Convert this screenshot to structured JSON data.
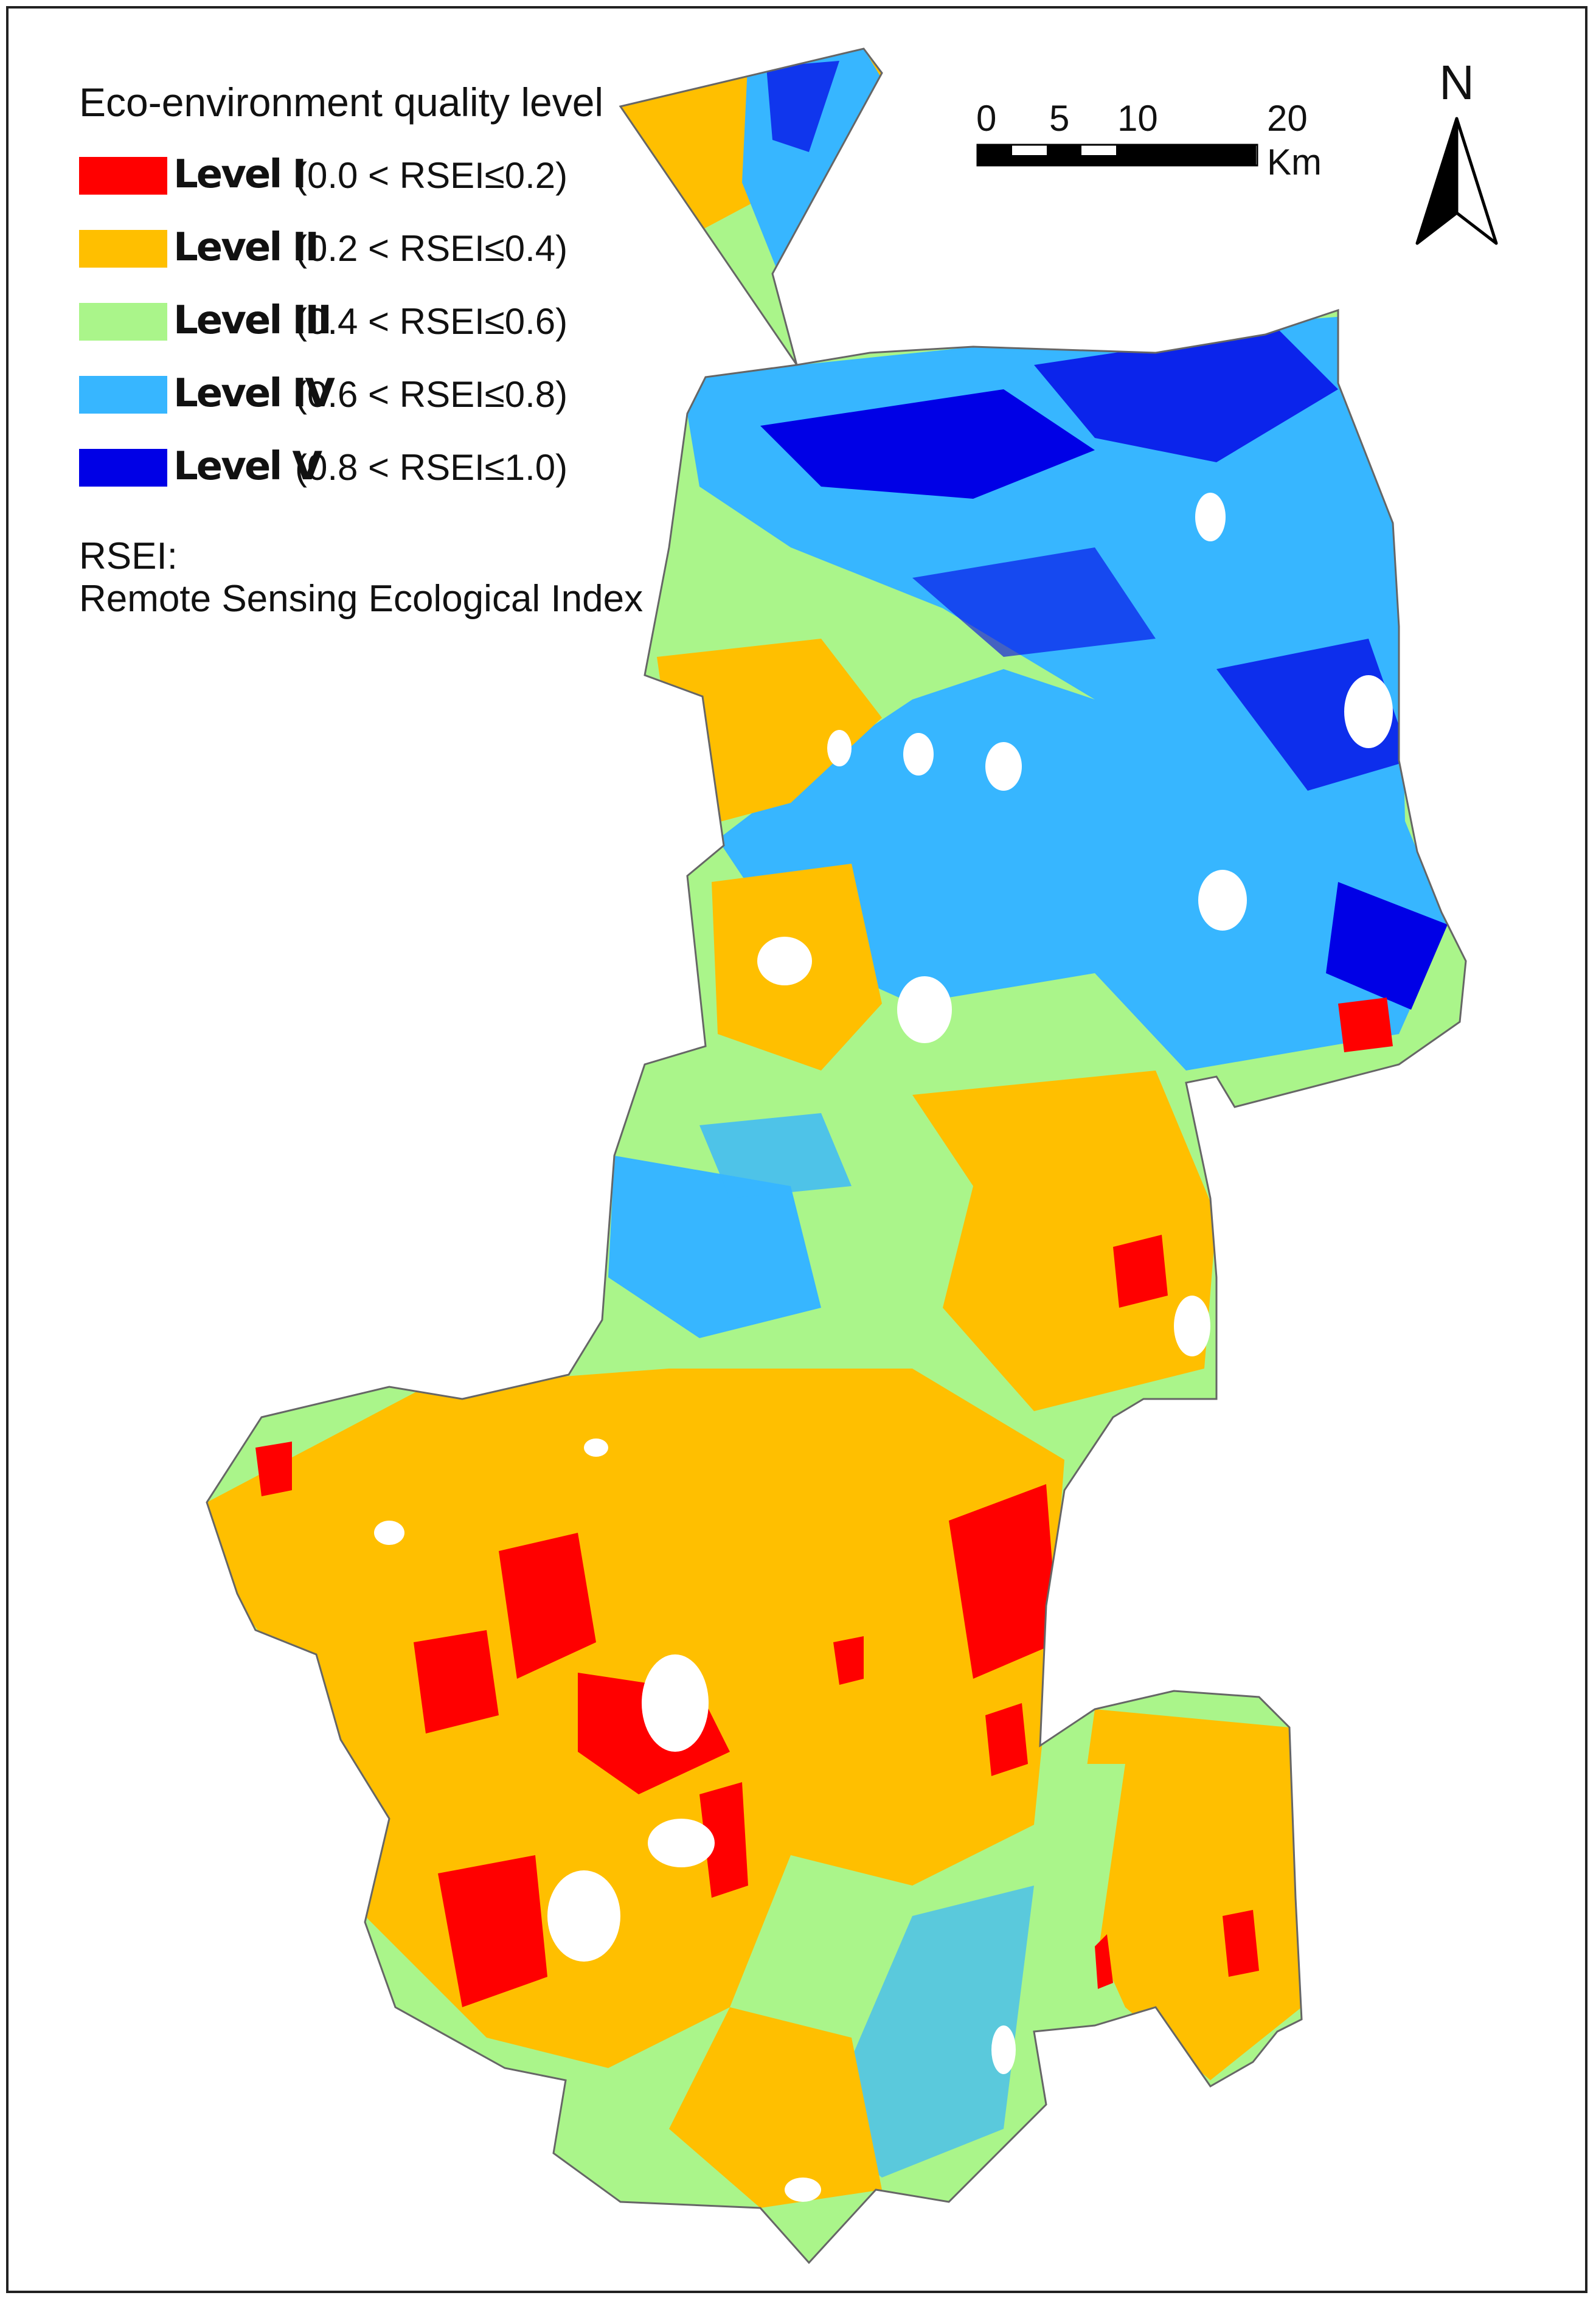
{
  "legend": {
    "title": "Eco-environment quality  level",
    "levels": [
      {
        "label": "Level I",
        "range": "(0.0 < RSEI≤0.2)",
        "color": "#ff0000"
      },
      {
        "label": "Level II",
        "range": "(0.2 < RSEI≤0.4)",
        "color": "#ffbf00"
      },
      {
        "label": "Level III",
        "range": "(0.4 < RSEI≤0.6)",
        "color": "#aaf58a"
      },
      {
        "label": "Level IV",
        "range": "(0.6 < RSEI≤0.8)",
        "color": "#37b6ff"
      },
      {
        "label": "Level V",
        "range": "(0.8 < RSEI≤1.0)",
        "color": "#0000e6"
      }
    ],
    "note_line1": "RSEI:",
    "note_line2": "Remote Sensing Ecological Index"
  },
  "scale_bar": {
    "ticks": [
      "0",
      "5",
      "10",
      "20"
    ],
    "unit": "Km"
  },
  "north_arrow": {
    "letter": "N",
    "icon": "north-arrow-icon"
  }
}
